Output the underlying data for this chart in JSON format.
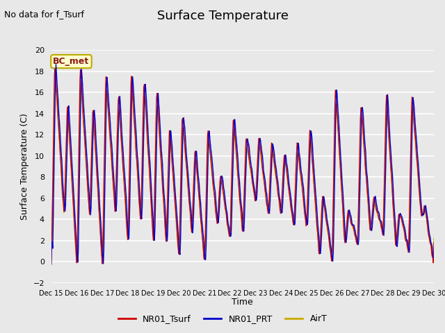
{
  "title": "Surface Temperature",
  "ylabel": "Surface Temperature (C)",
  "xlabel": "Time",
  "top_left_text": "No data for f_Tsurf",
  "annotation_box": "BC_met",
  "ylim": [
    -2,
    20
  ],
  "yticks": [
    -2,
    0,
    2,
    4,
    6,
    8,
    10,
    12,
    14,
    16,
    18,
    20
  ],
  "background_color": "#e8e8e8",
  "line_colors": {
    "NR01_Tsurf": "#cc0000",
    "NR01_PRT": "#0000cc",
    "AirT": "#ccaa00"
  },
  "legend_labels": [
    "NR01_Tsurf",
    "NR01_PRT",
    "AirT"
  ],
  "start_day": 15,
  "end_day": 30,
  "title_fontsize": 13,
  "axis_fontsize": 9,
  "tick_fontsize": 8
}
